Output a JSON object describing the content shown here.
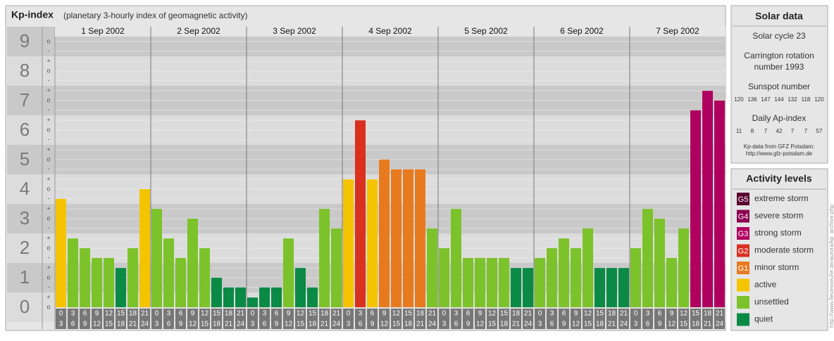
{
  "chart_data": {
    "type": "bar",
    "title": "Kp-index",
    "subtitle": "(planetary 3-hourly index of geomagnetic activity)",
    "days": [
      "1 Sep 2002",
      "2 Sep 2002",
      "3 Sep 2002",
      "4 Sep 2002",
      "5 Sep 2002",
      "6 Sep 2002",
      "7 Sep 2002"
    ],
    "hour_labels": [
      [
        "0",
        "3"
      ],
      [
        "3",
        "6"
      ],
      [
        "6",
        "9"
      ],
      [
        "9",
        "12"
      ],
      [
        "12",
        "15"
      ],
      [
        "15",
        "18"
      ],
      [
        "18",
        "21"
      ],
      [
        "21",
        "24"
      ]
    ],
    "values": [
      3.67,
      2.33,
      2.0,
      1.67,
      1.67,
      1.33,
      2.0,
      4.0,
      3.33,
      2.33,
      1.67,
      3.0,
      2.0,
      1.0,
      0.67,
      0.67,
      0.33,
      0.67,
      0.67,
      2.33,
      1.33,
      0.67,
      3.33,
      2.67,
      4.33,
      6.33,
      4.33,
      5.0,
      4.67,
      4.67,
      4.67,
      2.67,
      2.0,
      3.33,
      1.67,
      1.67,
      1.67,
      1.67,
      1.33,
      1.33,
      1.67,
      2.0,
      2.33,
      2.0,
      2.67,
      1.33,
      1.33,
      1.33,
      2.0,
      3.33,
      3.0,
      1.67,
      2.67,
      6.67,
      7.33,
      7.0
    ],
    "colors": [
      "#f5c400",
      "#7cc22a",
      "#7cc22a",
      "#7cc22a",
      "#7cc22a",
      "#0a8a45",
      "#7cc22a",
      "#f5c400",
      "#7cc22a",
      "#7cc22a",
      "#7cc22a",
      "#7cc22a",
      "#7cc22a",
      "#0a8a45",
      "#0a8a45",
      "#0a8a45",
      "#0a8a45",
      "#0a8a45",
      "#0a8a45",
      "#7cc22a",
      "#0a8a45",
      "#0a8a45",
      "#7cc22a",
      "#7cc22a",
      "#f5c400",
      "#d93020",
      "#f5c400",
      "#e87a1e",
      "#e87a1e",
      "#e87a1e",
      "#e87a1e",
      "#7cc22a",
      "#7cc22a",
      "#7cc22a",
      "#7cc22a",
      "#7cc22a",
      "#7cc22a",
      "#7cc22a",
      "#0a8a45",
      "#0a8a45",
      "#7cc22a",
      "#7cc22a",
      "#7cc22a",
      "#7cc22a",
      "#7cc22a",
      "#0a8a45",
      "#0a8a45",
      "#0a8a45",
      "#7cc22a",
      "#7cc22a",
      "#7cc22a",
      "#7cc22a",
      "#7cc22a",
      "#b0005f",
      "#b0005f",
      "#b0005f"
    ],
    "ylim": [
      0,
      9.5
    ],
    "yticks": [
      0,
      1,
      2,
      3,
      4,
      5,
      6,
      7,
      8,
      9
    ],
    "minor_ticks": [
      {
        "value": 0,
        "label": "o"
      },
      {
        "value": 0.33,
        "label": "+"
      },
      {
        "value": 0.67,
        "label": "-"
      },
      {
        "value": 1,
        "label": "o"
      },
      {
        "value": 1.33,
        "label": "+"
      },
      {
        "value": 1.67,
        "label": "-"
      },
      {
        "value": 2,
        "label": "o"
      },
      {
        "value": 2.33,
        "label": "+"
      },
      {
        "value": 2.67,
        "label": "-"
      },
      {
        "value": 3,
        "label": "o"
      },
      {
        "value": 3.33,
        "label": "+"
      },
      {
        "value": 3.67,
        "label": "-"
      },
      {
        "value": 4,
        "label": "o"
      },
      {
        "value": 4.33,
        "label": "+"
      },
      {
        "value": 4.67,
        "label": "-"
      },
      {
        "value": 5,
        "label": "o"
      },
      {
        "value": 5.33,
        "label": "+"
      },
      {
        "value": 5.67,
        "label": "-"
      },
      {
        "value": 6,
        "label": "o"
      },
      {
        "value": 6.33,
        "label": "+"
      },
      {
        "value": 6.67,
        "label": "-"
      },
      {
        "value": 7,
        "label": "o"
      },
      {
        "value": 7.33,
        "label": "+"
      },
      {
        "value": 7.67,
        "label": "-"
      },
      {
        "value": 8,
        "label": "o"
      },
      {
        "value": 8.33,
        "label": "+"
      },
      {
        "value": 8.67,
        "label": "-"
      },
      {
        "value": 9,
        "label": "o"
      }
    ]
  },
  "solar_data": {
    "title": "Solar data",
    "cycle": "Solar cycle 23",
    "carrington": [
      "Carrington rotation",
      "number 1993"
    ],
    "sunspot_label": "Sunspot number",
    "sunspot_numbers": [
      "120",
      "136",
      "147",
      "144",
      "132",
      "118",
      "120"
    ],
    "ap_label": "Daily Ap-index",
    "ap_values": [
      "11",
      "8",
      "7",
      "42",
      "7",
      "7",
      "57"
    ],
    "source": [
      "Kp-data from GFZ Potsdam:",
      "http://www.gfz-potsdam.de"
    ]
  },
  "activity": {
    "title": "Activity levels",
    "levels": [
      {
        "badge": "G5",
        "name": "extreme storm",
        "color": "#5a0030"
      },
      {
        "badge": "G4",
        "name": "severe storm",
        "color": "#8b0050"
      },
      {
        "badge": "G3",
        "name": "strong storm",
        "color": "#b0005f"
      },
      {
        "badge": "G2",
        "name": "moderate storm",
        "color": "#d93020"
      },
      {
        "badge": "G1",
        "name": "minor storm",
        "color": "#e87a1e"
      },
      {
        "badge": "",
        "name": "active",
        "color": "#f5c400"
      },
      {
        "badge": "",
        "name": "unsettled",
        "color": "#7cc22a"
      },
      {
        "badge": "",
        "name": "quiet",
        "color": "#0a8a45"
      }
    ]
  },
  "credit": "http://www.fieuesseufer.de/aurora/kp_archive.php"
}
